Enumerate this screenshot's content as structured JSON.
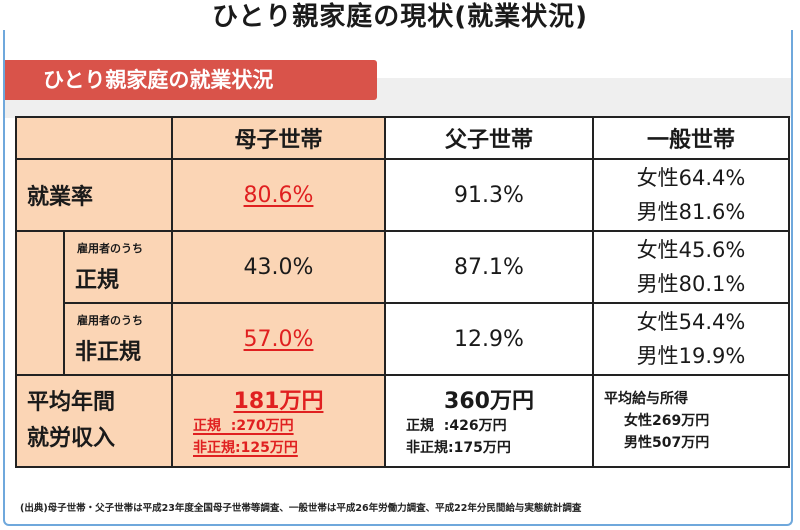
{
  "title": "ひとり親家庭の現状(就業状況)",
  "banner": "ひとり親家庭の就業状況",
  "headers": {
    "col1": "母子世帯",
    "col2": "父子世帯",
    "col3": "一般世帯"
  },
  "rows": {
    "employment": {
      "label": "就業率",
      "mother": "80.6%",
      "father": "91.3%",
      "general_female": "女性64.4%",
      "general_male": "男性81.6%"
    },
    "regular": {
      "small": "雇用者のうち",
      "label": "正規",
      "mother": "43.0%",
      "father": "87.1%",
      "general_female": "女性45.6%",
      "general_male": "男性80.1%"
    },
    "nonregular": {
      "small": "雇用者のうち",
      "label": "非正規",
      "mother": "57.0%",
      "father": "12.9%",
      "general_female": "女性54.4%",
      "general_male": "男性19.9%"
    },
    "income": {
      "label1": "平均年間",
      "label2": "就労収入",
      "mother_total": "181万円",
      "mother_regular": "正規  :270万円",
      "mother_nonregular": "非正規:125万円",
      "father_total": "360万円",
      "father_regular": "正規  :426万円",
      "father_nonregular": "非正規:175万円",
      "general_title": "平均給与所得",
      "general_female": "女性269万円",
      "general_male": "男性507万円"
    }
  },
  "source": "(出典)母子世帯・父子世帯は平成23年度全国母子世帯等調査、一般世帯は平成26年労働力調査、平成22年分民間給与実態統計調査"
}
